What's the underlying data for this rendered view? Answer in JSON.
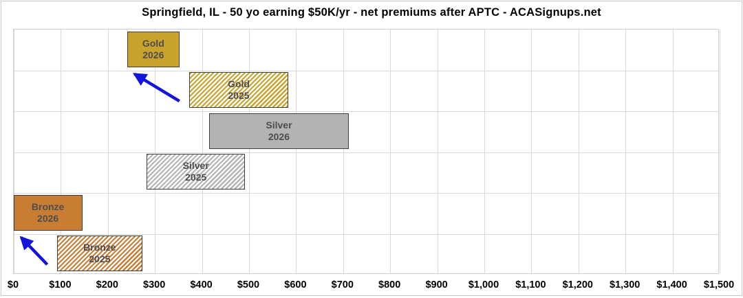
{
  "title": "Springfield, IL - 50 yo earning $50K/yr - net premiums after APTC - ACASignups.net",
  "chart_data": {
    "type": "bar",
    "subtype": "horizontal-floating-range",
    "title": "Springfield, IL - 50 yo earning $50K/yr - net premiums after APTC - ACASignups.net",
    "xlabel": "",
    "ylabel": "",
    "x_axis": {
      "min": 0,
      "max": 1500,
      "step": 100,
      "tick_values": [
        0,
        100,
        200,
        300,
        400,
        500,
        600,
        700,
        800,
        900,
        1000,
        1100,
        1200,
        1300,
        1400,
        1500
      ],
      "tick_labels": [
        "$0",
        "$100",
        "$200",
        "$300",
        "$400",
        "$500",
        "$600",
        "$700",
        "$800",
        "$900",
        "$1,000",
        "$1,100",
        "$1,200",
        "$1,300",
        "$1,400",
        "$1,500"
      ]
    },
    "grid": "both",
    "legend": "none",
    "bars": [
      {
        "name": "Gold 2026",
        "label_lines": [
          "Gold",
          "2026"
        ],
        "range_usd": [
          242,
          354
        ],
        "pattern": "solid",
        "color": "#c9a22b"
      },
      {
        "name": "Gold 2025",
        "label_lines": [
          "Gold",
          "2025"
        ],
        "range_usd": [
          374,
          585
        ],
        "pattern": "diagonal-hatch",
        "color": "#c9a22b"
      },
      {
        "name": "Silver 2026",
        "label_lines": [
          "Silver",
          "2026"
        ],
        "range_usd": [
          416,
          714
        ],
        "pattern": "solid",
        "color": "#b3b3b3"
      },
      {
        "name": "Silver 2025",
        "label_lines": [
          "Silver",
          "2025"
        ],
        "range_usd": [
          284,
          493
        ],
        "pattern": "diagonal-hatch",
        "color": "#b3b3b3"
      },
      {
        "name": "Bronze 2026",
        "label_lines": [
          "Bronze",
          "2026"
        ],
        "range_usd": [
          1,
          147
        ],
        "pattern": "solid",
        "color": "#c87d33"
      },
      {
        "name": "Bronze 2025",
        "label_lines": [
          "Bronze",
          "2025"
        ],
        "range_usd": [
          93,
          275
        ],
        "pattern": "diagonal-hatch",
        "color": "#c87d33"
      }
    ],
    "annotations": [
      {
        "type": "arrow",
        "from_bar": "Gold 2025",
        "to_bar": "Gold 2026",
        "meaning": "gold net premium shift from 2025 to 2026",
        "color": "#1414dd"
      },
      {
        "type": "arrow",
        "from_bar": "Bronze 2025",
        "to_bar": "Bronze 2026",
        "meaning": "bronze net premium shift from 2025 to 2026",
        "color": "#1414dd"
      }
    ]
  },
  "colors": {
    "background": "#ffffff",
    "outer_border": "#c6c6c6",
    "plot_border": "#cfcfcf",
    "gridline": "#d9d9d9",
    "bar_border": "#3d3d3d",
    "bar_label_text": "#4d4d4d",
    "title_text": "#000000",
    "axis_text": "#000000",
    "arrow": "#1414dd"
  }
}
